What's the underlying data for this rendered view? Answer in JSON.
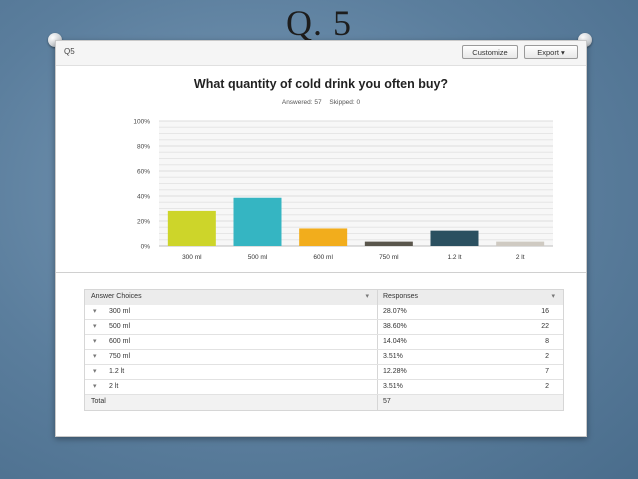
{
  "slide": {
    "title": "Q. 5"
  },
  "header": {
    "question_label": "Q5",
    "customize_label": "Customize",
    "export_label": "Export ▾"
  },
  "summary": {
    "answered": "Answered: 57",
    "skipped": "Skipped: 0"
  },
  "chart_data": {
    "type": "bar",
    "title": "What quantity of cold drink you often buy?",
    "categories": [
      "300 ml",
      "500 ml",
      "600 ml",
      "750 ml",
      "1.2 lt",
      "2 lt"
    ],
    "values": [
      28.07,
      38.6,
      14.04,
      3.51,
      12.28,
      3.51
    ],
    "colors": [
      "#cdd52a",
      "#35b5c2",
      "#f2ad1c",
      "#5a564c",
      "#2b5060",
      "#cfcac2"
    ],
    "ylim": [
      0,
      100
    ],
    "yticks": [
      "0%",
      "20%",
      "40%",
      "60%",
      "80%",
      "100%"
    ],
    "ytick_values": [
      0,
      20,
      40,
      60,
      80,
      100
    ],
    "grid": true,
    "xlabel": "",
    "ylabel": ""
  },
  "table": {
    "headers": [
      "Answer Choices",
      "Responses"
    ],
    "rows": [
      {
        "choice": "300 ml",
        "percent": "28.07%",
        "count": "16"
      },
      {
        "choice": "500 ml",
        "percent": "38.60%",
        "count": "22"
      },
      {
        "choice": "600 ml",
        "percent": "14.04%",
        "count": "8"
      },
      {
        "choice": "750 ml",
        "percent": "3.51%",
        "count": "2"
      },
      {
        "choice": "1.2 lt",
        "percent": "12.28%",
        "count": "7"
      },
      {
        "choice": "2 lt",
        "percent": "3.51%",
        "count": "2"
      }
    ],
    "total_label": "Total",
    "total_value": "57"
  }
}
